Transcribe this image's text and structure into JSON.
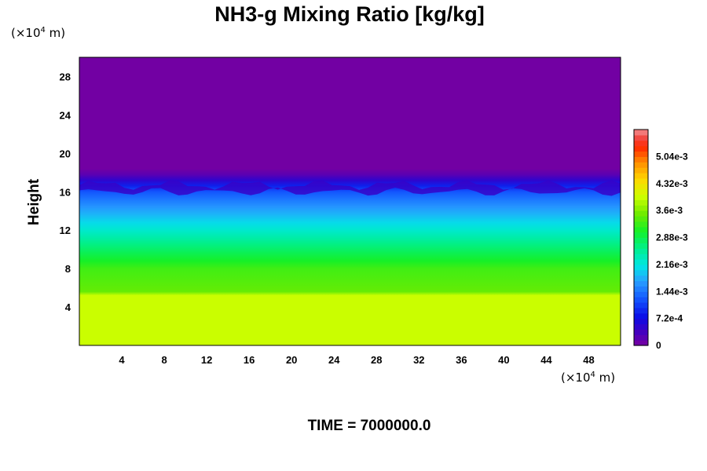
{
  "chart_data": {
    "type": "heatmap",
    "title": "NH3-g Mixing Ratio [kg/kg]",
    "ylabel": "Height",
    "xlabel": "",
    "x_unit": {
      "prefix": "(×10",
      "exp": "4",
      "suffix": " m)"
    },
    "y_unit": {
      "prefix": "(×10",
      "exp": "4",
      "suffix": " m)"
    },
    "xlim": [
      0,
      51
    ],
    "ylim": [
      0,
      30
    ],
    "x_ticks": [
      4,
      8,
      12,
      16,
      20,
      24,
      28,
      32,
      36,
      40,
      44,
      48
    ],
    "y_ticks": [
      4,
      8,
      12,
      16,
      20,
      24,
      28
    ],
    "colorbar": {
      "min": 0,
      "max": 0.00576,
      "levels": 40,
      "tick_values": [
        0,
        0.00072,
        0.00144,
        0.00216,
        0.00288,
        0.0036,
        0.00432,
        0.00504
      ],
      "tick_labels": [
        "0",
        "7.2e-4",
        "1.44e-3",
        "2.16e-3",
        "2.88e-3",
        "3.6e-3",
        "4.32e-3",
        "5.04e-3"
      ]
    },
    "profile": {
      "height": [
        0,
        5.2,
        5.6,
        8,
        8.8,
        9.6,
        10.4,
        11.2,
        12,
        12.8,
        13.6,
        14.4,
        15.2,
        16,
        16.6,
        17.2,
        17.8,
        18.4,
        30
      ],
      "value": [
        0.00396,
        0.00396,
        0.00346,
        0.00328,
        0.00306,
        0.00286,
        0.00266,
        0.00246,
        0.00226,
        0.00206,
        0.00186,
        0.00166,
        0.00146,
        0.00124,
        0.0009,
        0.0005,
        0.0002,
        4e-05,
        4e-05
      ]
    },
    "grid": false
  },
  "footer": {
    "time_text": "TIME = 7000000.0"
  }
}
